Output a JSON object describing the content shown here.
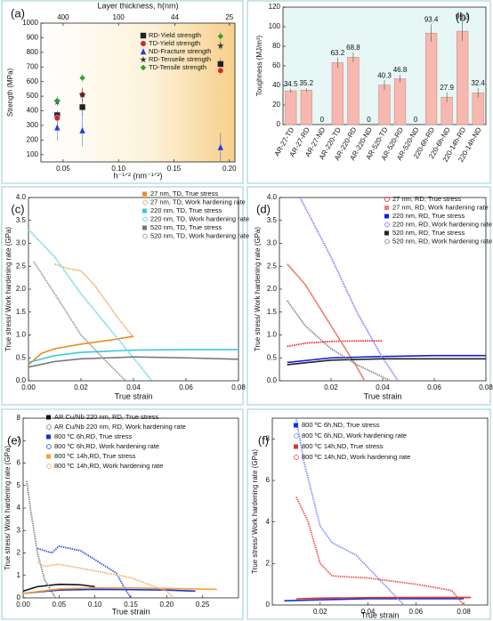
{
  "chart_data": [
    {
      "type": "scatter",
      "label": "(a)",
      "xlabel": "h⁻¹ᐟ² (nm⁻¹ᐟ²)",
      "ylabel": "Strength (MPa)",
      "x2label": "Layer thickness, h(nm)",
      "x": [
        0.0447,
        0.0674,
        0.192
      ],
      "xlim": [
        0.03,
        0.205
      ],
      "xticks": [
        {
          "value": 0.05,
          "label": "0.05"
        },
        {
          "value": 0.1,
          "label": "0.10"
        },
        0.15,
        {
          "value": 0.2,
          "label": "0.20"
        }
      ],
      "x2ticks": [
        {
          "value": 0.05,
          "label": "400"
        },
        {
          "value": 0.1,
          "label": "100"
        },
        {
          "value": 0.1508,
          "label": "44"
        },
        {
          "value": 0.2,
          "label": "25"
        }
      ],
      "ylim": [
        50,
        1000
      ],
      "yticks": [
        100,
        200,
        300,
        400,
        500,
        600,
        700,
        800,
        900,
        1000
      ],
      "legend": "upper right",
      "series": [
        {
          "name": "RD-Yield strength",
          "color": "#222222",
          "marker": "square",
          "values": [
            370,
            425,
            720
          ],
          "errors": [
            30,
            60,
            40
          ]
        },
        {
          "name": "TD-Yield strength",
          "color": "#e02020",
          "marker": "circle",
          "values": [
            350,
            510,
            675
          ],
          "errors": [
            40,
            50,
            30
          ]
        },
        {
          "name": "ND-Fracture strength",
          "color": "#1f3fdc",
          "marker": "triangle",
          "values": [
            285,
            265,
            150
          ],
          "errors": [
            90,
            110,
            100
          ]
        },
        {
          "name": "RD-Tenseile strength",
          "color": "#333333",
          "marker": "star",
          "values": [
            460,
            510,
            845
          ],
          "errors": [
            30,
            40,
            30
          ]
        },
        {
          "name": "TD-Tensile strength",
          "color": "#2ca02c",
          "marker": "diamond",
          "values": [
            470,
            625,
            910
          ],
          "errors": [
            30,
            30,
            30
          ]
        }
      ]
    },
    {
      "type": "bar",
      "label": "(b)",
      "ylabel": "Toughness (MJ/m³)",
      "color": "#f7b8b0",
      "categories": [
        "AR-27-TD",
        "AR-27-RD",
        "AR-27-ND",
        "AR-220-TD",
        "AR-220-RD",
        "AR-220-ND",
        "AR-520-TD",
        "AR-520-RD",
        "AR-520-ND",
        "220-6h-RD",
        "220-6h-ND",
        "220-14h-RD",
        "220-14h-ND"
      ],
      "values": [
        34.5,
        35.2,
        0,
        63.2,
        68.8,
        0,
        40.3,
        46.8,
        0,
        93.4,
        27.9,
        95.3,
        32.4
      ],
      "errors": [
        2,
        2,
        0,
        5,
        5,
        0,
        5,
        4,
        0,
        9,
        5,
        10,
        5
      ],
      "ylim": [
        0,
        120
      ],
      "yticks": [
        0,
        20,
        40,
        60,
        80,
        100,
        120
      ]
    },
    {
      "type": "line",
      "label": "(c)",
      "xlabel": "True strain",
      "ylabel": "True stress/ Work hardening rate (GPa)",
      "legend": "upper right",
      "xlim": [
        0,
        0.08
      ],
      "xticks": [
        {
          "value": 0,
          "label": "0.00"
        },
        0.02,
        0.04,
        0.06,
        0.08
      ],
      "ylim": [
        0,
        4
      ],
      "yticks": [
        {
          "value": 0,
          "label": "0.0"
        },
        0.5,
        {
          "value": 1,
          "label": "1.0"
        },
        1.5,
        {
          "value": 2,
          "label": "2.0"
        },
        2.5,
        {
          "value": 3,
          "label": "3.0"
        },
        3.5,
        {
          "value": 4,
          "label": "4.0"
        }
      ],
      "series": [
        {
          "name": "27 nm, TD, True stress",
          "color": "#f28a1c",
          "style": "solid",
          "x": [
            0,
            0.005,
            0.01,
            0.02,
            0.03,
            0.04
          ],
          "values": [
            0.35,
            0.6,
            0.7,
            0.8,
            0.88,
            0.97
          ]
        },
        {
          "name": "27 nm, TD, Work hardening rate",
          "color": "#f5a860",
          "style": "open",
          "x": [
            0.01,
            0.015,
            0.02,
            0.025,
            0.03,
            0.035,
            0.04
          ],
          "values": [
            2.55,
            2.45,
            2.4,
            2.1,
            1.7,
            1.3,
            0.95
          ]
        },
        {
          "name": "220 nm, TD, True stress",
          "color": "#3cc8d8",
          "style": "solid",
          "x": [
            0,
            0.01,
            0.02,
            0.04,
            0.06,
            0.08
          ],
          "values": [
            0.4,
            0.55,
            0.62,
            0.67,
            0.68,
            0.68
          ]
        },
        {
          "name": "220 nm, TD, Work hardening rate",
          "color": "#5fd6e2",
          "style": "open",
          "x": [
            0,
            0.01,
            0.02,
            0.03,
            0.04,
            0.047
          ],
          "values": [
            3.3,
            2.7,
            1.9,
            1.2,
            0.5,
            0
          ]
        },
        {
          "name": "520 nm, TD, True stress",
          "color": "#777777",
          "style": "solid",
          "x": [
            0,
            0.01,
            0.02,
            0.04,
            0.06,
            0.08
          ],
          "values": [
            0.3,
            0.42,
            0.48,
            0.52,
            0.5,
            0.47
          ]
        },
        {
          "name": "520 nm, TD, Work hardening rate",
          "color": "#999999",
          "style": "open",
          "x": [
            0.002,
            0.01,
            0.02,
            0.03,
            0.037
          ],
          "values": [
            2.6,
            1.9,
            1.0,
            0.4,
            0
          ]
        }
      ]
    },
    {
      "type": "line",
      "label": "(d)",
      "xlabel": "True strain",
      "ylabel": "True stress/ Work hardening rate (GPa)",
      "legend": "upper right",
      "xlim": [
        0,
        0.08
      ],
      "xticks": [
        0.02,
        0.04,
        0.06,
        0.08
      ],
      "ylim": [
        0,
        4
      ],
      "yticks": [
        {
          "value": 0,
          "label": "0.0"
        },
        0.5,
        {
          "value": 1,
          "label": "1.0"
        },
        1.5,
        {
          "value": 2,
          "label": "2.0"
        },
        2.5,
        {
          "value": 3,
          "label": "3.0"
        },
        3.5,
        {
          "value": 4,
          "label": "4.0"
        }
      ],
      "series": [
        {
          "name": "27 nm, RD, True stress",
          "color": "#e53030",
          "style": "open",
          "x": [
            0.003,
            0.01,
            0.02,
            0.03,
            0.04
          ],
          "values": [
            0.75,
            0.82,
            0.86,
            0.87,
            0.87
          ]
        },
        {
          "name": "27 nm, RD, Work hardening rate",
          "color": "#f08070",
          "style": "solid",
          "x": [
            0.003,
            0.01,
            0.02,
            0.03,
            0.033
          ],
          "values": [
            2.55,
            2.1,
            1.2,
            0.3,
            0
          ]
        },
        {
          "name": "220 nm, RD, True stress",
          "color": "#1020e0",
          "style": "solid",
          "x": [
            0.003,
            0.02,
            0.04,
            0.06,
            0.08
          ],
          "values": [
            0.4,
            0.5,
            0.53,
            0.55,
            0.55
          ]
        },
        {
          "name": "220 nm, RD, Work hardening rate",
          "color": "#8080ff",
          "style": "open",
          "x": [
            0.008,
            0.02,
            0.03,
            0.04,
            0.046
          ],
          "values": [
            4.0,
            2.7,
            1.5,
            0.5,
            0
          ]
        },
        {
          "name": "520 nm, RD, True stress",
          "color": "#222222",
          "style": "solid",
          "x": [
            0.003,
            0.02,
            0.04,
            0.06,
            0.08
          ],
          "values": [
            0.35,
            0.45,
            0.48,
            0.48,
            0.48
          ]
        },
        {
          "name": "520 nm, RD, Work hardening rate",
          "color": "#888888",
          "style": "open",
          "x": [
            0.003,
            0.01,
            0.02,
            0.03,
            0.043
          ],
          "values": [
            1.75,
            1.2,
            0.7,
            0.35,
            0
          ]
        }
      ]
    },
    {
      "type": "line",
      "label": "(e)",
      "xlabel": "True strain",
      "ylabel": "True stress/ Work hardening rate (GPa)",
      "legend": "upper right",
      "xlim": [
        0,
        0.3
      ],
      "xticks": [
        {
          "value": 0,
          "label": "0.00"
        },
        0.05,
        {
          "value": 0.1,
          "label": "0.10"
        },
        0.15,
        {
          "value": 0.2,
          "label": "0.20"
        },
        0.25
      ],
      "ylim": [
        0,
        8
      ],
      "yticks": [
        0,
        1,
        2,
        3,
        4,
        5,
        6,
        7,
        8
      ],
      "series": [
        {
          "name": "AR Cu/Nb 220 nm, RD, True stress",
          "color": "#111111",
          "style": "solid",
          "x": [
            0,
            0.02,
            0.05,
            0.08,
            0.1
          ],
          "values": [
            0.3,
            0.5,
            0.6,
            0.58,
            0.5
          ]
        },
        {
          "name": "AR Cu/Nb 220 nm, RD, Work hardening rate",
          "color": "#888888",
          "style": "open",
          "x": [
            0.005,
            0.01,
            0.02,
            0.03,
            0.045
          ],
          "values": [
            5.2,
            4.0,
            2.0,
            0.8,
            0
          ]
        },
        {
          "name": "800 ºC 6h,RD, True stress",
          "color": "#1030e0",
          "style": "solid",
          "x": [
            0,
            0.05,
            0.1,
            0.15,
            0.2,
            0.24
          ],
          "values": [
            0.2,
            0.35,
            0.38,
            0.37,
            0.35,
            0.3
          ]
        },
        {
          "name": "800 ºC 6h,RD, Work hardening rate",
          "color": "#3050f0",
          "style": "open",
          "x": [
            0.02,
            0.04,
            0.05,
            0.08,
            0.1,
            0.13,
            0.14,
            0.15
          ],
          "values": [
            2.2,
            2.0,
            2.3,
            2.1,
            1.7,
            1.1,
            0.5,
            0
          ]
        },
        {
          "name": "800 ºC 14h,RD, True stress",
          "color": "#f7a030",
          "style": "solid",
          "x": [
            0,
            0.05,
            0.1,
            0.15,
            0.2,
            0.27
          ],
          "values": [
            0.2,
            0.4,
            0.45,
            0.45,
            0.42,
            0.38
          ]
        },
        {
          "name": "800 ºC 14h,RD, Work hardening rate",
          "color": "#f8b070",
          "style": "open",
          "x": [
            0.02,
            0.03,
            0.05,
            0.1,
            0.15,
            0.2,
            0.21
          ],
          "values": [
            1.6,
            1.4,
            1.5,
            1.2,
            0.9,
            0.3,
            0
          ]
        }
      ]
    },
    {
      "type": "line",
      "label": "(f)",
      "xlabel": "True strain",
      "ylabel": "True stress/ Work hardening rate (GPa)",
      "legend": "upper right",
      "xlim": [
        0,
        0.09
      ],
      "xticks": [
        0.02,
        0.04,
        0.06,
        0.08
      ],
      "ylim": [
        0,
        9
      ],
      "yticks": [
        0,
        2,
        4,
        6,
        8
      ],
      "series": [
        {
          "name": "800 ºC 6h,ND, True stress",
          "color": "#1030e0",
          "style": "solid",
          "x": [
            0.005,
            0.02,
            0.04,
            0.06,
            0.08
          ],
          "values": [
            0.2,
            0.25,
            0.3,
            0.3,
            0.3
          ]
        },
        {
          "name": "800 ºC 6h,ND, Work hardening rate",
          "color": "#8090ff",
          "style": "open",
          "x": [
            0.01,
            0.013,
            0.02,
            0.025,
            0.035,
            0.045,
            0.055
          ],
          "values": [
            9,
            7,
            3.8,
            3.0,
            2.4,
            1.2,
            0
          ]
        },
        {
          "name": "800 ºC 14h,ND, True stress",
          "color": "#e03030",
          "style": "solid",
          "x": [
            0.01,
            0.02,
            0.04,
            0.06,
            0.08,
            0.083
          ],
          "values": [
            0.3,
            0.33,
            0.35,
            0.36,
            0.36,
            0.36
          ]
        },
        {
          "name": "800 ºC 14h,ND, Work hardening rate",
          "color": "#f05050",
          "style": "open",
          "x": [
            0.01,
            0.015,
            0.02,
            0.025,
            0.04,
            0.06,
            0.075,
            0.08
          ],
          "values": [
            5.2,
            4.0,
            2.0,
            1.4,
            1.3,
            1.0,
            0.7,
            0
          ]
        }
      ]
    }
  ]
}
